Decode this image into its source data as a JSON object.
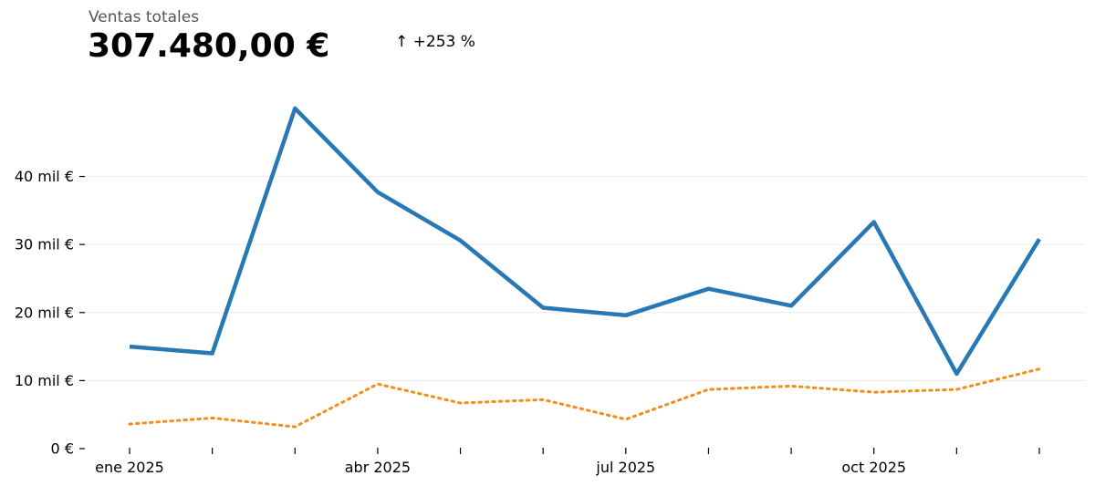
{
  "header": {
    "title": "Ventas totales",
    "total": "307.480,00 €",
    "delta": "↑ +253 %"
  },
  "chart_data": {
    "type": "line",
    "x": [
      "2025-01",
      "2025-02",
      "2025-03",
      "2025-04",
      "2025-05",
      "2025-06",
      "2025-07",
      "2025-08",
      "2025-09",
      "2025-10",
      "2025-11",
      "2025-12"
    ],
    "x_tick_labels": [
      {
        "x": "2025-01",
        "label": "ene 2025"
      },
      {
        "x": "2025-04",
        "label": "abr 2025"
      },
      {
        "x": "2025-07",
        "label": "jul 2025"
      },
      {
        "x": "2025-10",
        "label": "oct 2025"
      }
    ],
    "y_ticks": [
      0,
      10000,
      20000,
      30000,
      40000
    ],
    "y_tick_labels": [
      "0 €",
      "10 mil €",
      "20 mil €",
      "30 mil €",
      "40 mil €"
    ],
    "ylim": [
      0,
      52000
    ],
    "grid": true,
    "legend": "none",
    "series": [
      {
        "color": "#2878b5",
        "style": "solid",
        "values": [
          15000,
          14000,
          50000,
          37700,
          30600,
          20700,
          19600,
          23500,
          21000,
          33300,
          11000,
          30800
        ]
      },
      {
        "color": "#f28e1c",
        "style": "dotted",
        "values": [
          3600,
          4500,
          3200,
          9500,
          6700,
          7200,
          4300,
          8700,
          9200,
          8300,
          8700,
          11700
        ]
      }
    ]
  }
}
